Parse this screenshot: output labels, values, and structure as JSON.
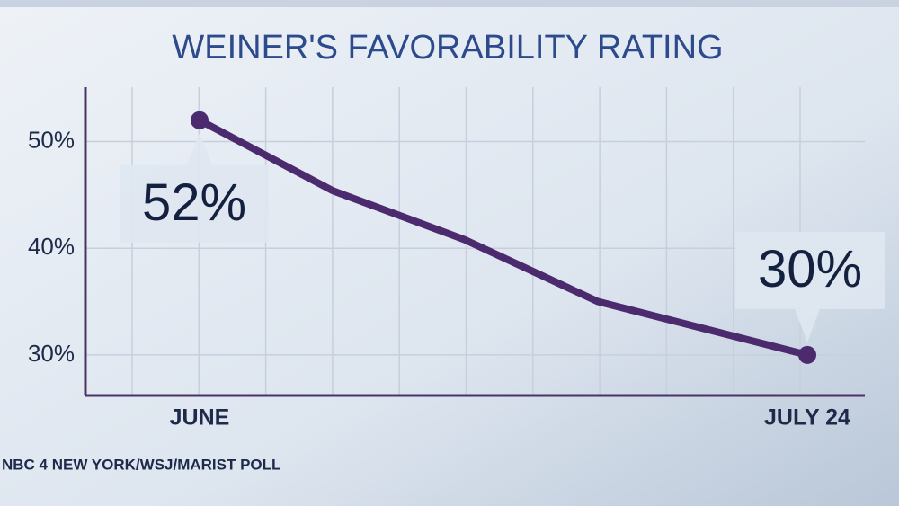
{
  "chart_data": {
    "type": "line",
    "title": "WEINER'S FAVORABILITY RATING",
    "categories": [
      "JUNE",
      null,
      null,
      null,
      "JULY 24"
    ],
    "series": [
      {
        "name": "Favorability",
        "color": "#4b2a6e",
        "values": [
          52,
          45.4,
          40.8,
          35,
          30
        ],
        "value_labels": [
          "52%",
          null,
          null,
          null,
          "30%"
        ]
      }
    ],
    "ylim": [
      26.2,
      55.1
    ],
    "yticks": [
      {
        "value": 30,
        "label": "30%"
      },
      {
        "value": 40,
        "label": "40%"
      },
      {
        "value": 50,
        "label": "50%"
      }
    ],
    "grid": true,
    "source": "NBC 4 NEW YORK/WSJ/MARIST POLL"
  }
}
